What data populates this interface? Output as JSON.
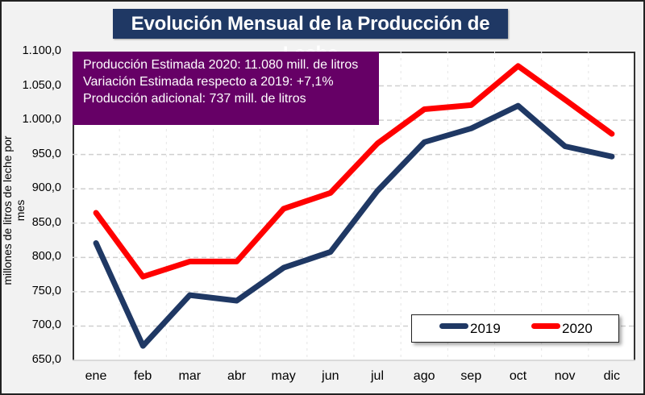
{
  "chart_data": {
    "type": "line",
    "title": "Evolución Mensual de la Producción de Leche",
    "xlabel": "",
    "ylabel": "millones de litros de leche por mes",
    "categories": [
      "ene",
      "feb",
      "mar",
      "abr",
      "may",
      "jun",
      "jul",
      "ago",
      "sep",
      "oct",
      "nov",
      "dic"
    ],
    "ylim": [
      650,
      1100
    ],
    "yticks": [
      650,
      700,
      750,
      800,
      850,
      900,
      950,
      1000,
      1050,
      1100
    ],
    "ytick_labels": [
      "650,0",
      "700,0",
      "750,0",
      "800,0",
      "850,0",
      "900,0",
      "950,0",
      "1.000,0",
      "1.050,0",
      "1.100,0"
    ],
    "grid": true,
    "legend_position": "bottom-right",
    "series": [
      {
        "name": "2019",
        "color": "#1f3864",
        "values": [
          821,
          671,
          745,
          737,
          785,
          808,
          897,
          968,
          988,
          1021,
          962,
          947
        ]
      },
      {
        "name": "2020",
        "color": "#ff0000",
        "values": [
          865,
          772,
          794,
          794,
          871,
          894,
          966,
          1016,
          1022,
          1079,
          1030,
          980
        ]
      }
    ],
    "annotations": [
      "Producción Estimada 2020: 11.080 mill. de litros",
      "Variación Estimada respecto a 2019: +7,1%",
      "Producción adicional: 737 mill. de litros"
    ]
  },
  "colors": {
    "title_bg": "#1f3864",
    "info_bg": "#660066",
    "background": "#f2f2f2"
  }
}
